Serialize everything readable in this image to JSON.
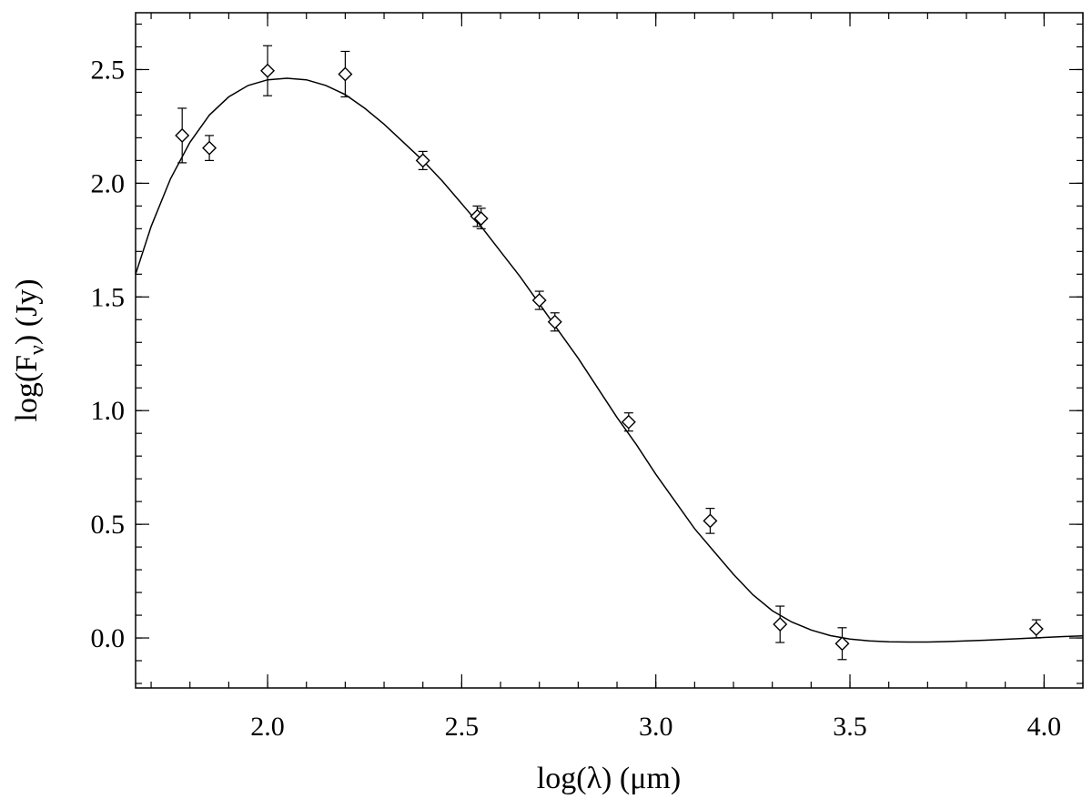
{
  "chart_data": {
    "type": "scatter",
    "title": "",
    "xlabel": "log(λ) (μm)",
    "ylabel_parts": {
      "pre": "log(F",
      "sub": "ν",
      "post": ") (Jy)"
    },
    "xlim": [
      1.66,
      4.1
    ],
    "ylim": [
      -0.22,
      2.75
    ],
    "grid": false,
    "x_ticks": [
      {
        "value": 2.0,
        "label": "2.0"
      },
      {
        "value": 2.5,
        "label": "2.5"
      },
      {
        "value": 3.0,
        "label": "3.0"
      },
      {
        "value": 3.5,
        "label": "3.5"
      },
      {
        "value": 4.0,
        "label": "4.0"
      }
    ],
    "y_ticks": [
      {
        "value": 0.0,
        "label": "0.0"
      },
      {
        "value": 0.5,
        "label": "0.5"
      },
      {
        "value": 1.0,
        "label": "1.0"
      },
      {
        "value": 1.5,
        "label": "1.5"
      },
      {
        "value": 2.0,
        "label": "2.0"
      },
      {
        "value": 2.5,
        "label": "2.5"
      }
    ],
    "x_minor_step": 0.1,
    "y_minor_step": 0.1,
    "points": [
      {
        "x": 1.78,
        "y": 2.21,
        "err": 0.12
      },
      {
        "x": 1.85,
        "y": 2.155,
        "err": 0.055
      },
      {
        "x": 2.0,
        "y": 2.495,
        "err": 0.11
      },
      {
        "x": 2.2,
        "y": 2.48,
        "err": 0.1
      },
      {
        "x": 2.4,
        "y": 2.1,
        "err": 0.04
      },
      {
        "x": 2.54,
        "y": 1.855,
        "err": 0.045
      },
      {
        "x": 2.55,
        "y": 1.845,
        "err": 0.045
      },
      {
        "x": 2.7,
        "y": 1.485,
        "err": 0.04
      },
      {
        "x": 2.74,
        "y": 1.39,
        "err": 0.04
      },
      {
        "x": 2.93,
        "y": 0.95,
        "err": 0.04
      },
      {
        "x": 3.14,
        "y": 0.515,
        "err": 0.055
      },
      {
        "x": 3.32,
        "y": 0.06,
        "err": 0.08
      },
      {
        "x": 3.48,
        "y": -0.025,
        "err": 0.07
      },
      {
        "x": 3.98,
        "y": 0.04,
        "err": 0.04
      }
    ],
    "model_curve": {
      "x": [
        1.66,
        1.7,
        1.75,
        1.8,
        1.85,
        1.9,
        1.95,
        2.0,
        2.05,
        2.1,
        2.15,
        2.2,
        2.25,
        2.3,
        2.35,
        2.4,
        2.45,
        2.5,
        2.55,
        2.6,
        2.65,
        2.7,
        2.75,
        2.8,
        2.85,
        2.9,
        2.95,
        3.0,
        3.05,
        3.1,
        3.15,
        3.2,
        3.25,
        3.3,
        3.35,
        3.4,
        3.45,
        3.5,
        3.55,
        3.6,
        3.65,
        3.7,
        3.75,
        3.8,
        3.85,
        3.9,
        3.95,
        4.0,
        4.05,
        4.1
      ],
      "y": [
        1.6,
        1.81,
        2.02,
        2.18,
        2.3,
        2.38,
        2.43,
        2.455,
        2.462,
        2.455,
        2.43,
        2.39,
        2.33,
        2.26,
        2.18,
        2.1,
        2.01,
        1.91,
        1.81,
        1.7,
        1.59,
        1.47,
        1.35,
        1.23,
        1.1,
        0.97,
        0.85,
        0.72,
        0.6,
        0.48,
        0.38,
        0.28,
        0.19,
        0.12,
        0.07,
        0.035,
        0.01,
        -0.005,
        -0.013,
        -0.017,
        -0.018,
        -0.018,
        -0.016,
        -0.013,
        -0.01,
        -0.006,
        -0.002,
        0.002,
        0.006,
        0.009
      ]
    }
  }
}
